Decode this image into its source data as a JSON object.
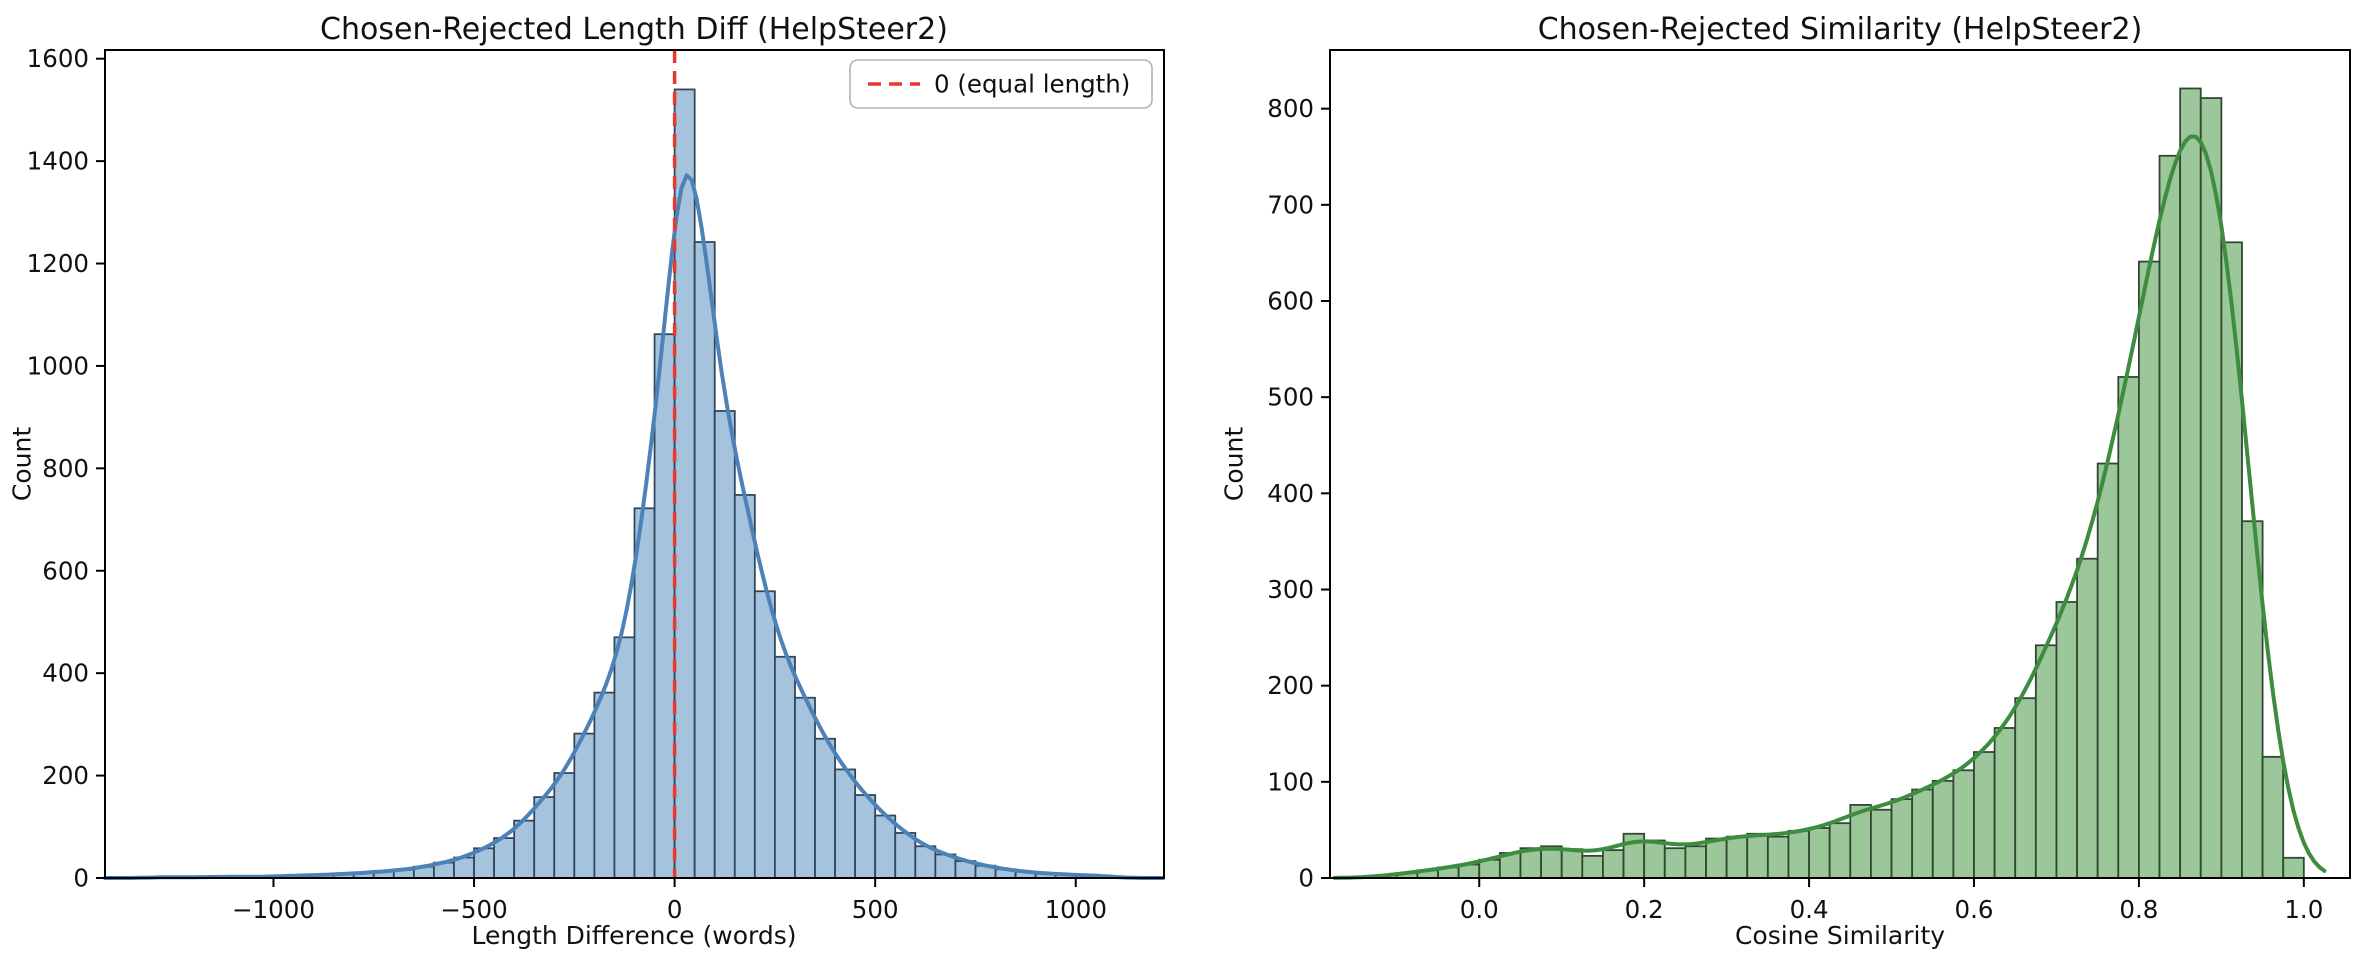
{
  "page": {
    "background": "#ffffff"
  },
  "chart_data": [
    {
      "type": "bar",
      "subtype": "histogram-with-kde",
      "title": "Chosen-Rejected Length Diff (HelpSteer2)",
      "xlabel": "Length Difference (words)",
      "ylabel": "Count",
      "xlim": [
        -1420,
        1220
      ],
      "ylim": [
        0,
        1617
      ],
      "grid": false,
      "xticks": [
        {
          "v": -1000,
          "label": "−1000"
        },
        {
          "v": -500,
          "label": "−500"
        },
        {
          "v": 0,
          "label": "0"
        },
        {
          "v": 500,
          "label": "500"
        },
        {
          "v": 1000,
          "label": "1000"
        }
      ],
      "yticks": [
        {
          "v": 0,
          "label": "0"
        },
        {
          "v": 200,
          "label": "200"
        },
        {
          "v": 400,
          "label": "400"
        },
        {
          "v": 600,
          "label": "600"
        },
        {
          "v": 800,
          "label": "800"
        },
        {
          "v": 1000,
          "label": "1000"
        },
        {
          "v": 1200,
          "label": "1200"
        },
        {
          "v": 1400,
          "label": "1400"
        },
        {
          "v": 1600,
          "label": "1600"
        }
      ],
      "bins": {
        "start": -1300,
        "width": 50
      },
      "counts": [
        2,
        1,
        2,
        2,
        3,
        2,
        4,
        5,
        6,
        8,
        10,
        13,
        16,
        22,
        30,
        40,
        58,
        78,
        112,
        158,
        205,
        282,
        362,
        470,
        722,
        1062,
        1540,
        1242,
        912,
        748,
        560,
        432,
        352,
        272,
        212,
        162,
        122,
        88,
        62,
        46,
        33,
        24,
        17,
        12,
        9,
        7,
        5,
        4
      ],
      "style": {
        "bar_fill": "#a6c3de",
        "bar_edge": "#33475c",
        "kde_color": "#4d82b8"
      },
      "vline": {
        "x": 0,
        "color": "#e8392e",
        "style": "dashed"
      },
      "legend": [
        {
          "label": "0 (equal length)",
          "color": "#e8392e",
          "line_style": "dashed"
        }
      ]
    },
    {
      "type": "bar",
      "subtype": "histogram-with-kde",
      "title": "Chosen-Rejected Similarity (HelpSteer2)",
      "xlabel": "Cosine Similarity",
      "ylabel": "Count",
      "xlim": [
        -0.181,
        1.056
      ],
      "ylim": [
        0,
        861
      ],
      "grid": false,
      "xticks": [
        {
          "v": 0.0,
          "label": "0.0"
        },
        {
          "v": 0.2,
          "label": "0.2"
        },
        {
          "v": 0.4,
          "label": "0.4"
        },
        {
          "v": 0.6,
          "label": "0.6"
        },
        {
          "v": 0.8,
          "label": "0.8"
        },
        {
          "v": 1.0,
          "label": "1.0"
        }
      ],
      "yticks": [
        {
          "v": 0,
          "label": "0"
        },
        {
          "v": 100,
          "label": "100"
        },
        {
          "v": 200,
          "label": "200"
        },
        {
          "v": 300,
          "label": "300"
        },
        {
          "v": 400,
          "label": "400"
        },
        {
          "v": 500,
          "label": "500"
        },
        {
          "v": 600,
          "label": "600"
        },
        {
          "v": 700,
          "label": "700"
        },
        {
          "v": 800,
          "label": "800"
        }
      ],
      "bins": {
        "start": -0.125,
        "width": 0.025
      },
      "counts": [
        3,
        5,
        8,
        11,
        14,
        19,
        26,
        31,
        33,
        30,
        23,
        29,
        46,
        39,
        31,
        33,
        41,
        43,
        46,
        43,
        49,
        52,
        57,
        76,
        71,
        82,
        92,
        101,
        112,
        131,
        156,
        187,
        242,
        287,
        332,
        431,
        521,
        641,
        751,
        821,
        811,
        661,
        371,
        126,
        21
      ],
      "style": {
        "bar_fill": "#9cc79b",
        "bar_edge": "#324733",
        "kde_color": "#3d8c40"
      },
      "vline": null,
      "legend": null
    }
  ]
}
